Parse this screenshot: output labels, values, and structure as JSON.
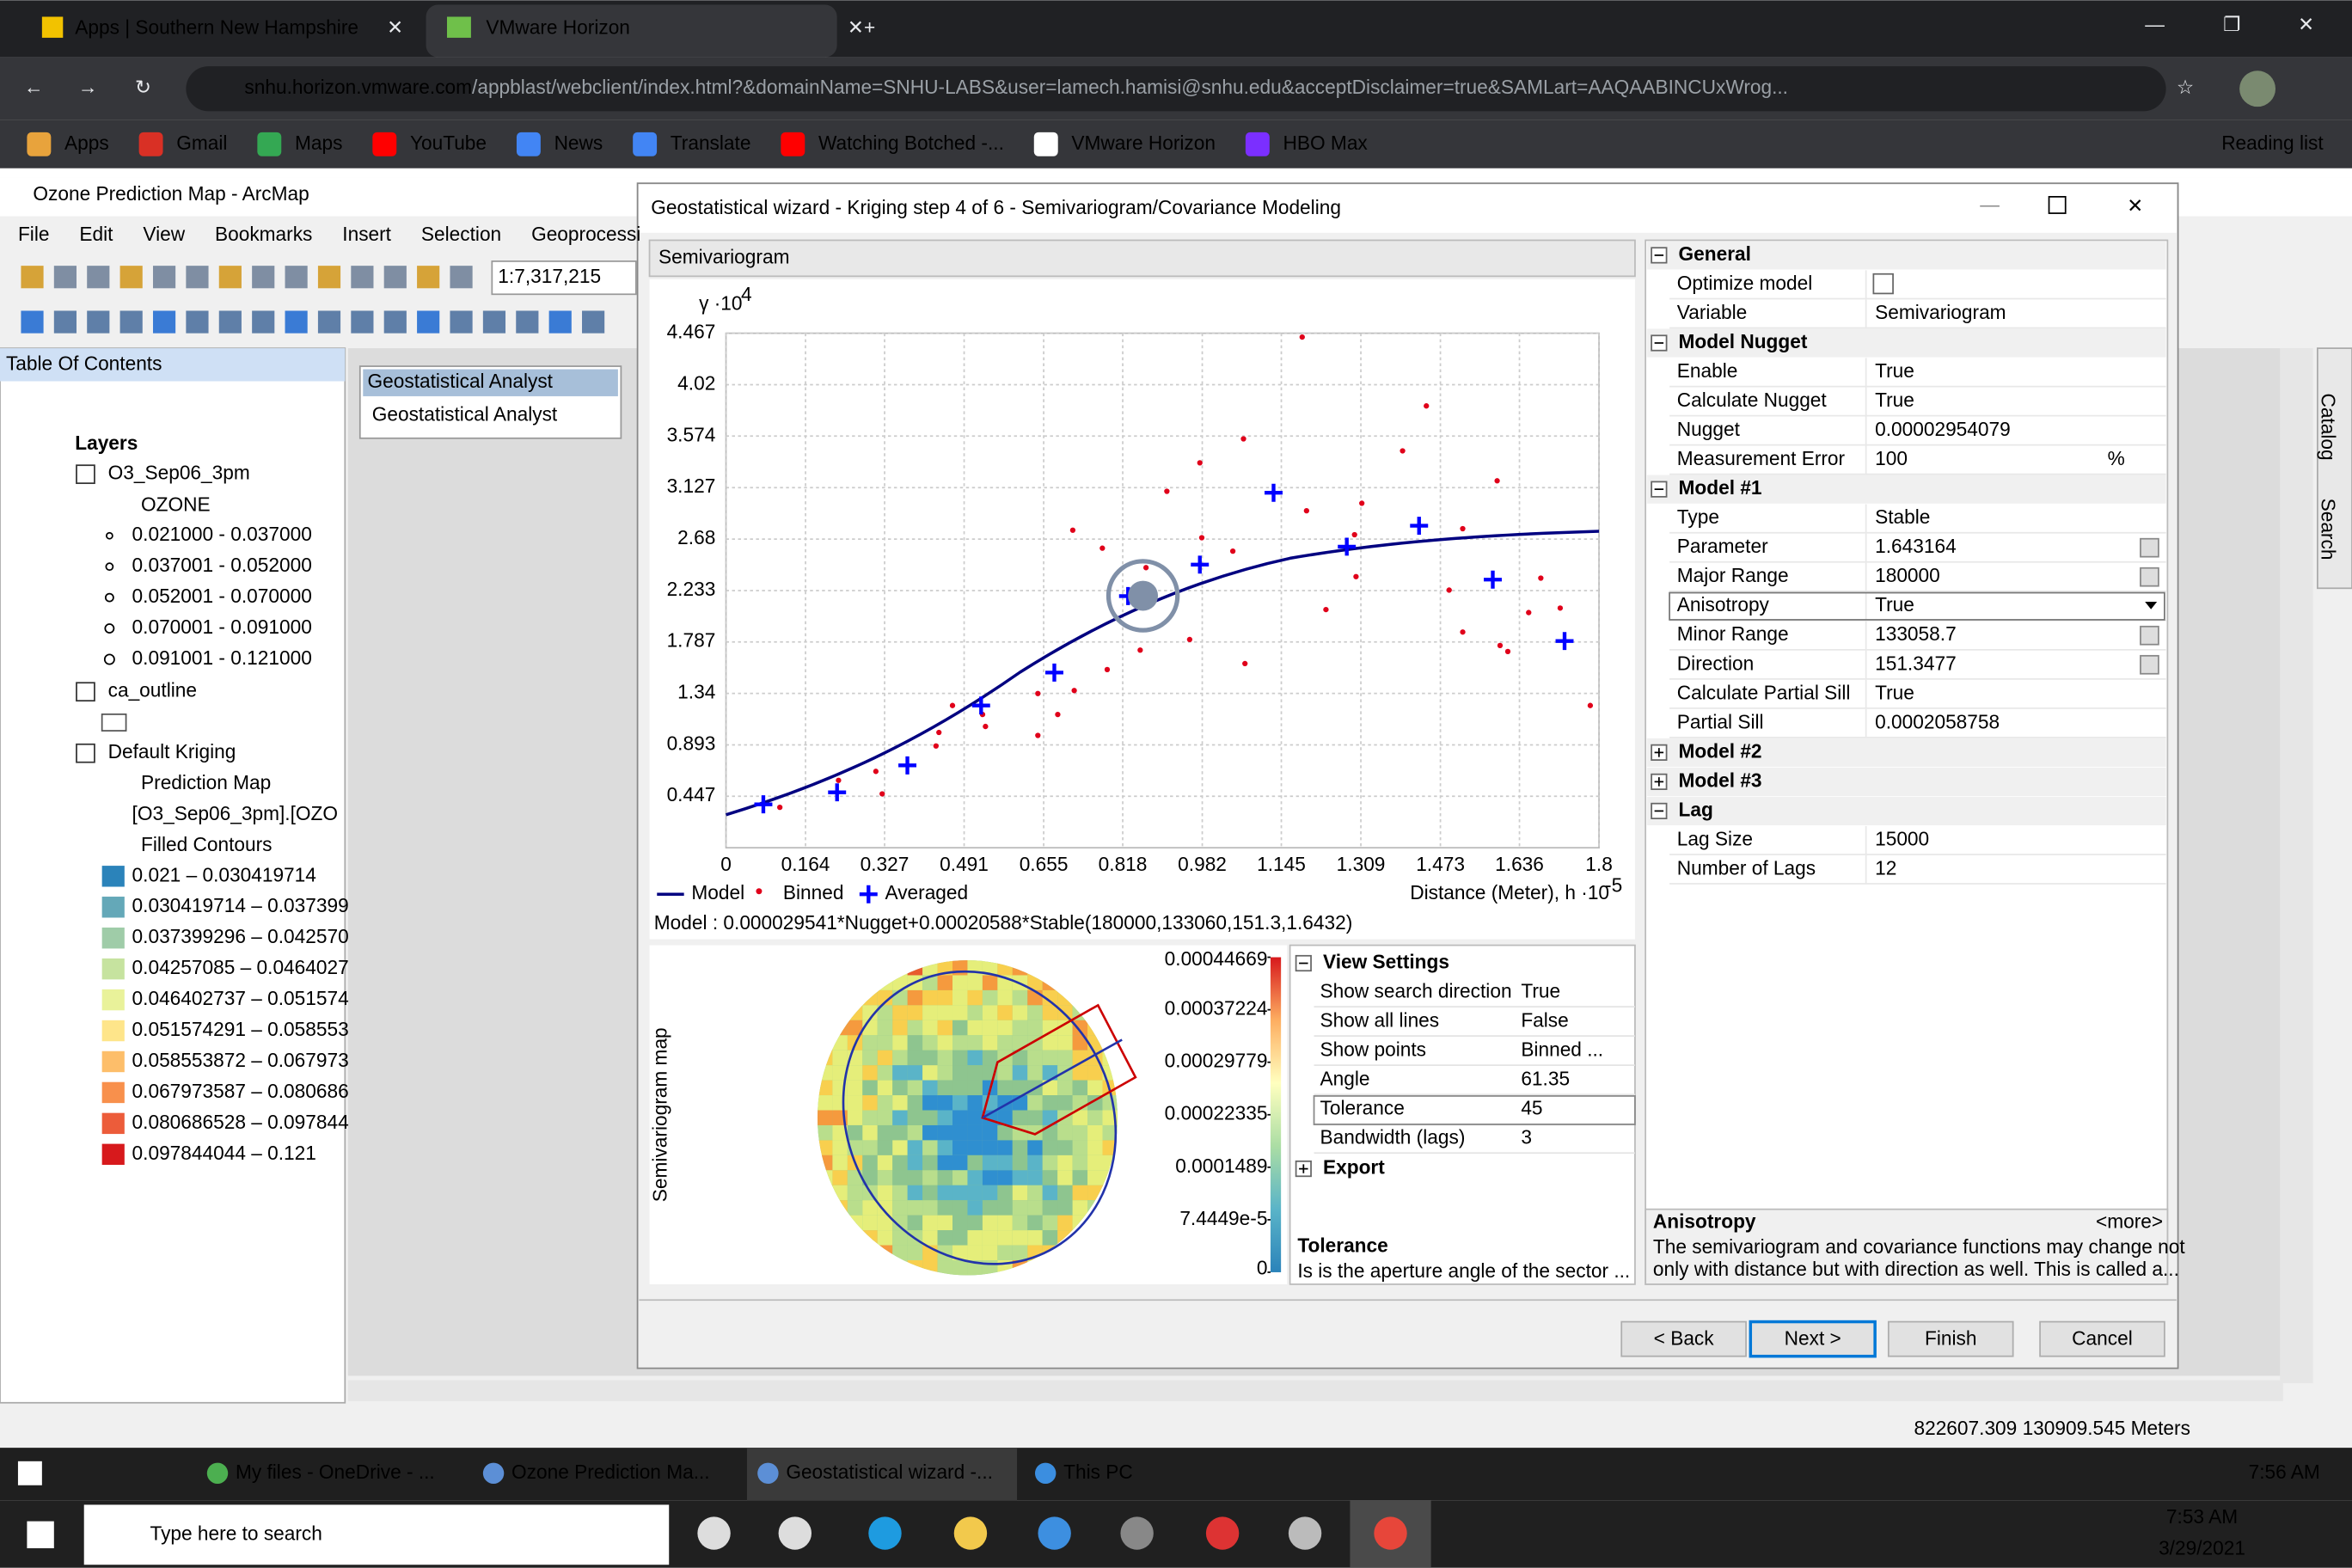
{
  "browser": {
    "tabs": [
      "Apps | Southern New Hampshire",
      "VMware Horizon"
    ],
    "url_host": "snhu.horizon.vmware.com",
    "url_path": "/appblast/webclient/index.html?&domainName=SNHU-LABS&user=lamech.hamisi@snhu.edu&acceptDisclaimer=true&SAMLart=AAQAABINCUxWrog...",
    "bookmarks": [
      "Apps",
      "Gmail",
      "Maps",
      "YouTube",
      "News",
      "Translate",
      "Watching Botched -...",
      "VMware Horizon",
      "HBO Max"
    ],
    "reading_list": "Reading list"
  },
  "arcmap": {
    "title": "Ozone Prediction Map - ArcMap",
    "menu": [
      "File",
      "Edit",
      "View",
      "Bookmarks",
      "Insert",
      "Selection",
      "Geoprocessi"
    ],
    "scale": "1:7,317,215",
    "toc_title": "Table Of Contents",
    "layers_root": "Layers",
    "layer1": {
      "name": "O3_Sep06_3pm",
      "field": "OZONE",
      "classes": [
        "0.021000 - 0.037000",
        "0.037001 - 0.052000",
        "0.052001 - 0.070000",
        "0.070001 - 0.091000",
        "0.091001 - 0.121000"
      ]
    },
    "layer2": {
      "name": "ca_outline"
    },
    "layer3": {
      "name_lines": [
        "Default Kriging",
        "Prediction Map",
        "[O3_Sep06_3pm].[OZO",
        "Filled Contours"
      ],
      "classes": [
        "0.021 – 0.030419714",
        "0.030419714 – 0.037399",
        "0.037399296 – 0.042570",
        "0.04257085 – 0.0464027",
        "0.046402737 – 0.051574",
        "0.051574291 – 0.058553",
        "0.058553872 – 0.067973",
        "0.067973587 – 0.080686",
        "0.080686528 – 0.097844",
        "0.097844044 – 0.121"
      ],
      "colors": [
        "#2b83ba",
        "#64a8b8",
        "#9fcca8",
        "#c6e39f",
        "#e9f29a",
        "#fee58a",
        "#fdbe6a",
        "#f8904c",
        "#ec5c3a",
        "#d7191c"
      ]
    },
    "analyst_toolbar_title": "Geostatistical Analyst",
    "analyst_button": "Geostatistical Analyst",
    "status": "822607.309  130909.545 Meters"
  },
  "wizard": {
    "title": "Geostatistical wizard - Kriging step 4 of 6 - Semivariogram/Covariance Modeling",
    "panel_label": "Semivariogram",
    "chart": {
      "type": "scatter",
      "y_label": "γ ·10",
      "y_exp": "4",
      "x_label": "Distance (Meter), h ·10",
      "x_exp": "-5",
      "xlim": [
        0,
        1.8
      ],
      "ylim": [
        0,
        4.467
      ],
      "xticks": [
        0,
        0.164,
        0.327,
        0.491,
        0.655,
        0.818,
        0.982,
        1.145,
        1.309,
        1.473,
        1.636,
        1.8
      ],
      "yticks": [
        0.447,
        0.893,
        1.34,
        1.787,
        2.233,
        2.68,
        3.127,
        3.574,
        4.02,
        4.467
      ],
      "grid": true,
      "legend": [
        "Model",
        "Binned",
        "Averaged"
      ],
      "colors": {
        "model": "#000080",
        "binned": "#e0001a",
        "averaged": "#0000ff"
      },
      "binned": {
        "x": [
          1.188,
          1.444,
          1.067,
          1.395,
          0.977,
          1.59,
          0.909,
          1.311,
          1.197,
          0.715,
          1.519,
          0.776,
          1.045,
          0.981,
          1.296,
          0.866,
          1.299,
          0.863,
          1.491,
          1.68,
          1.72,
          1.655,
          1.237,
          1.519,
          0.956,
          1.596,
          1.612,
          0.854,
          1.07,
          0.786,
          0.718,
          0.643,
          0.684,
          0.529,
          0.535,
          0.467,
          0.643,
          0.439,
          0.433,
          0.309,
          0.232,
          0.111,
          0.322,
          1.782
        ],
        "y": [
          4.434,
          3.836,
          3.55,
          3.446,
          3.342,
          3.186,
          3.095,
          2.991,
          2.926,
          2.757,
          2.77,
          2.601,
          2.575,
          2.692,
          2.718,
          2.432,
          2.354,
          2.276,
          2.237,
          2.341,
          2.081,
          2.042,
          2.068,
          1.873,
          1.808,
          1.756,
          1.704,
          1.716,
          1.599,
          1.547,
          1.365,
          1.339,
          1.157,
          1.157,
          1.053,
          1.235,
          0.975,
          1.001,
          0.884,
          0.663,
          0.585,
          0.351,
          0.468,
          1.235
        ]
      },
      "averaged": {
        "x": [
          0.077,
          0.229,
          0.374,
          0.526,
          0.677,
          0.829,
          0.977,
          1.129,
          1.28,
          1.429,
          1.581,
          1.729
        ],
        "y": [
          0.377,
          0.481,
          0.715,
          1.235,
          1.521,
          2.185,
          2.458,
          3.082,
          2.614,
          2.796,
          2.328,
          1.795
        ]
      }
    },
    "formula": "Model : 0.000029541*Nugget+0.00020588*Stable(180000,133060,151.3,1.6432)",
    "map_label": "Semivariogram map",
    "colorbar": {
      "lim": [
        0,
        0.00044669
      ],
      "ticks": [
        0.00044669,
        0.00037224,
        0.00029779,
        0.00022335,
        0.0001489,
        {
          "value": 7.4449e-05,
          "label": "7.4449e-5"
        },
        0
      ]
    },
    "view_settings": {
      "title": "View Settings",
      "rows": [
        {
          "name": "Show search direction",
          "value": "True"
        },
        {
          "name": "Show all lines",
          "value": "False"
        },
        {
          "name": "Show points",
          "value": "Binned ..."
        },
        {
          "name": "Angle",
          "value": "61.35"
        },
        {
          "name": "Tolerance",
          "value": "45"
        },
        {
          "name": "Bandwidth (lags)",
          "value": "3"
        }
      ],
      "export": "Export"
    },
    "view_help": {
      "title": "Tolerance",
      "text": "Is is the aperture angle of the sector ..."
    },
    "properties": [
      {
        "group": "General",
        "rows": [
          {
            "name": "Optimize model"
          },
          {
            "name": "Variable",
            "value": "Semivariogram"
          }
        ]
      },
      {
        "group": "Model Nugget",
        "rows": [
          {
            "name": "Enable",
            "value": "True"
          },
          {
            "name": "Calculate Nugget",
            "value": "True"
          },
          {
            "name": "Nugget",
            "value": "0.00002954079",
            "disabled": true
          },
          {
            "name": "Measurement Error",
            "value": "100",
            "unit": "%"
          }
        ]
      },
      {
        "group": "Model #1",
        "rows": [
          {
            "name": "Type",
            "value": "Stable"
          },
          {
            "name": "Parameter",
            "value": "1.643164",
            "disabled": true
          },
          {
            "name": "Major Range",
            "value": "180000",
            "disabled": true
          },
          {
            "name": "Anisotropy",
            "value": "True"
          },
          {
            "name": "Minor Range",
            "value": "133058.7",
            "disabled": true
          },
          {
            "name": "Direction",
            "value": "151.3477",
            "disabled": true
          },
          {
            "name": "Calculate Partial Sill",
            "value": "True"
          },
          {
            "name": "Partial Sill",
            "value": "0.0002058758",
            "disabled": true
          }
        ]
      },
      {
        "group": "Model #2",
        "rows": []
      },
      {
        "group": "Model #3",
        "rows": []
      },
      {
        "group": "Lag",
        "rows": [
          {
            "name": "Lag Size",
            "value": "15000"
          },
          {
            "name": "Number of Lags",
            "value": "12"
          }
        ]
      }
    ],
    "help": {
      "title": "Anisotropy",
      "more": "<more>",
      "lines": [
        "The semivariogram and covariance functions may change not",
        "only with distance but with direction as well. This is called a..."
      ]
    },
    "buttons": [
      "< Back",
      "Next >",
      "Finish",
      "Cancel"
    ]
  },
  "side_tabs": [
    "Catalog",
    "Search"
  ],
  "remote_taskbar": {
    "items": [
      "My files - OneDrive - ...",
      "Ozone Prediction Ma...",
      "Geostatistical wizard -...",
      "This PC"
    ],
    "time": "7:56 AM"
  },
  "taskbar": {
    "search": "Type here to search",
    "time": "7:53 AM",
    "date": "3/29/2021"
  }
}
